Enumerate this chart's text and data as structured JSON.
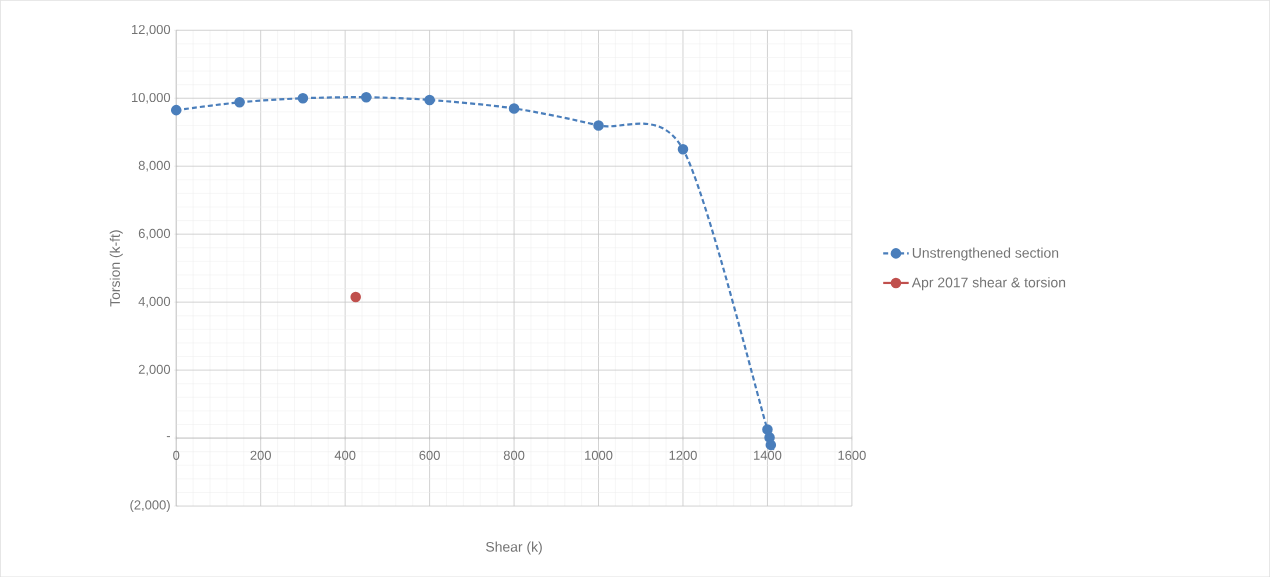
{
  "chart_data": {
    "type": "line",
    "xlabel": "Shear (k)",
    "ylabel": "Torsion (k-ft)",
    "xlim": [
      0,
      1600
    ],
    "xticks": [
      0,
      200,
      400,
      600,
      800,
      1000,
      1200,
      1400,
      1600
    ],
    "ylim": [
      -2000,
      12000
    ],
    "yticks": [
      {
        "value": -2000,
        "label": "(2,000)"
      },
      {
        "value": 0,
        "label": "-"
      },
      {
        "value": 2000,
        "label": "2,000"
      },
      {
        "value": 4000,
        "label": "4,000"
      },
      {
        "value": 6000,
        "label": "6,000"
      },
      {
        "value": 8000,
        "label": "8,000"
      },
      {
        "value": 10000,
        "label": "10,000"
      },
      {
        "value": 12000,
        "label": "12,000"
      }
    ],
    "grid": true,
    "legend": "right",
    "marker": "circle",
    "series": [
      {
        "name": "Unstrengthened section",
        "color": "#4a7ebb",
        "line_style": "dashed",
        "x": [
          0,
          150,
          300,
          450,
          600,
          800,
          1000,
          1200,
          1400,
          1405,
          1408
        ],
        "values": [
          9650,
          9880,
          10000,
          10030,
          9950,
          9700,
          9200,
          8500,
          250,
          20,
          -200
        ]
      },
      {
        "name": "Apr 2017 shear & torsion",
        "color": "#c0504d",
        "type": "scatter",
        "line_style": "solid",
        "x": [
          425
        ],
        "values": [
          4150
        ]
      }
    ]
  }
}
